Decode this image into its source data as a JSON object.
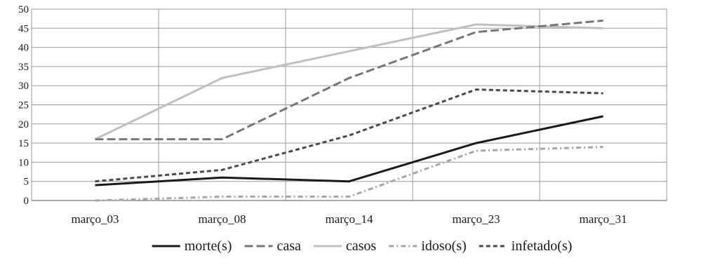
{
  "chart_data": {
    "type": "line",
    "title": "",
    "xlabel": "",
    "ylabel": "",
    "categories": [
      "março_03",
      "março_08",
      "março_14",
      "março_23",
      "março_31"
    ],
    "ylim": [
      0,
      50
    ],
    "yticks": [
      0,
      5,
      10,
      15,
      20,
      25,
      30,
      35,
      40,
      45,
      50
    ],
    "grid": true,
    "legend_position": "bottom",
    "series": [
      {
        "name": "morte(s)",
        "values": [
          4,
          6,
          5,
          15,
          22
        ],
        "color": "#1a1a1a",
        "dash": "solid"
      },
      {
        "name": "casa",
        "values": [
          16,
          16,
          32,
          44,
          47
        ],
        "color": "#777777",
        "dash": "dashed"
      },
      {
        "name": "casos",
        "values": [
          16,
          32,
          39,
          46,
          45
        ],
        "color": "#c0c0c0",
        "dash": "solid"
      },
      {
        "name": "idoso(s)",
        "values": [
          0,
          1,
          1,
          13,
          14
        ],
        "color": "#a6a6a6",
        "dash": "dashdot"
      },
      {
        "name": "infetado(s)",
        "values": [
          5,
          8,
          17,
          29,
          28
        ],
        "color": "#4a4a4a",
        "dash": "dashed-fine"
      }
    ]
  }
}
